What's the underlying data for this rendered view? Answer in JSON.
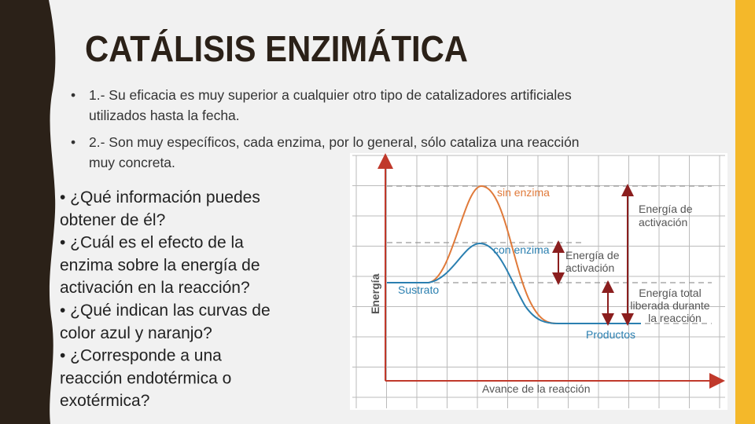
{
  "title": "CATÁLISIS ENZIMÁTICA",
  "bullets": [
    {
      "lines": [
        "1.- Su eficacia es muy superior a cualquier otro tipo de catalizadores artificiales",
        "utilizados hasta la fecha."
      ]
    },
    {
      "lines": [
        "2.- Son muy específicos, cada enzima, por lo general, sólo cataliza una reacción",
        "muy concreta."
      ]
    }
  ],
  "questions": {
    "lines": [
      "• ¿Qué información puedes",
      "obtener de él?",
      "• ¿Cuál es el efecto de la",
      "enzima sobre la energía de",
      "activación en la reacción?",
      "• ¿Qué indican las curvas de",
      "color azul y naranjo?",
      "• ¿Corresponde a una",
      "reacción endotérmica o",
      "exotérmica?"
    ]
  },
  "diagram": {
    "y_axis_label": "Energía",
    "x_axis_label": "Avance de la reacción",
    "sin_enzima": "sin enzima",
    "con_enzima": "con enzima",
    "sustrato": "Sustrato",
    "productos": "Productos",
    "activation_without": [
      "Energía de",
      "activación"
    ],
    "activation_with": [
      "Energía de",
      "activación"
    ],
    "total_energy": [
      "Energía total",
      "liberada durante",
      "la reacción"
    ]
  }
}
